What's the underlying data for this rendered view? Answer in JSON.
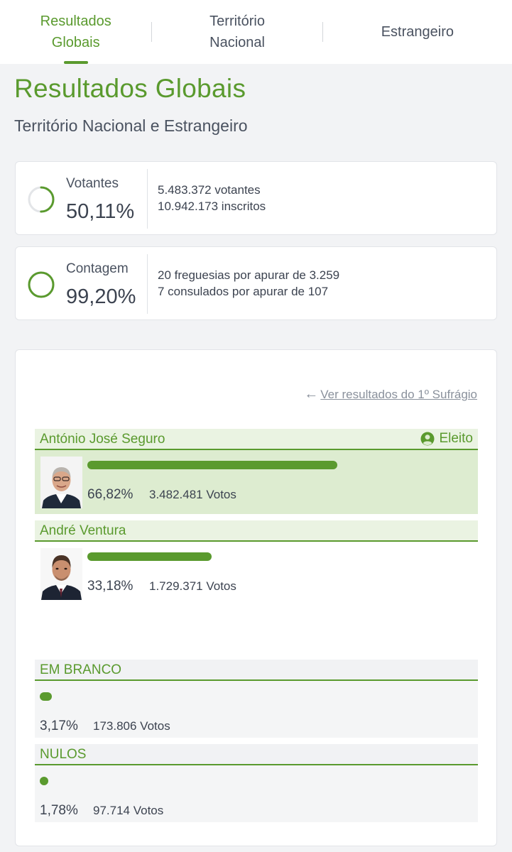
{
  "tabs": [
    {
      "label": "Resultados\nGlobais",
      "active": true
    },
    {
      "label": "Território\nNacional",
      "active": false
    },
    {
      "label": "Estrangeiro",
      "active": false
    }
  ],
  "title": "Resultados Globais",
  "subtitle": "Território Nacional e Estrangeiro",
  "stats": {
    "votantes": {
      "label": "Votantes",
      "value": "50,11%",
      "fraction": 0.5011,
      "line1": "5.483.372 votantes",
      "line2": "10.942.173 inscritos"
    },
    "contagem": {
      "label": "Contagem",
      "value": "99,20%",
      "fraction": 0.992,
      "line1": "20 freguesias por apurar de 3.259",
      "line2": "7 consulados por apurar de 107"
    }
  },
  "back_link": "Ver resultados do 1º Sufrágio",
  "candidates": [
    {
      "name": "António José Seguro",
      "badge": "Eleito",
      "pct": "66,82%",
      "pct_value": 66.82,
      "votes": "3.482.481 Votos"
    },
    {
      "name": "André Ventura",
      "badge": "",
      "pct": "33,18%",
      "pct_value": 33.18,
      "votes": "1.729.371 Votos"
    }
  ],
  "extras": [
    {
      "name": "EM BRANCO",
      "pct": "3,17%",
      "pct_value": 3.17,
      "votes": "173.806 Votos"
    },
    {
      "name": "NULOS",
      "pct": "1,78%",
      "pct_value": 1.78,
      "votes": "97.714 Votos"
    }
  ],
  "colors": {
    "accent": "#5a9a2e",
    "ring_track": "#e3e5e8",
    "elected_bg": "#ddecd0",
    "header_bg": "#eaf3e2"
  },
  "icons": {
    "back": "arrow-left-icon",
    "elected": "user-circle-icon"
  }
}
